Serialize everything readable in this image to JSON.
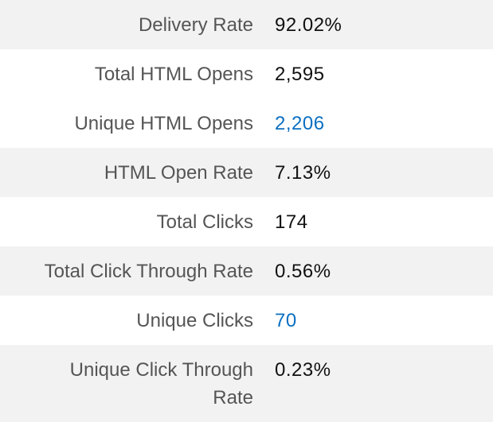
{
  "stats": {
    "rows": [
      {
        "label": "Delivery Rate",
        "value": "92.02%"
      },
      {
        "label": "Total HTML Opens",
        "value": "2,595"
      },
      {
        "label": "Unique HTML Opens",
        "value": "2,206"
      },
      {
        "label": "HTML Open Rate",
        "value": "7.13%"
      },
      {
        "label": "Total Clicks",
        "value": "174"
      },
      {
        "label": "Total Click Through Rate",
        "value": "0.56%"
      },
      {
        "label": "Unique Clicks",
        "value": "70"
      },
      {
        "label": "Unique Click Through Rate",
        "value": "0.23%"
      }
    ]
  },
  "colors": {
    "shaded_row": "#f2f2f2",
    "label_text": "#555555",
    "value_text": "#111111",
    "link_value": "#0b6fc2"
  }
}
